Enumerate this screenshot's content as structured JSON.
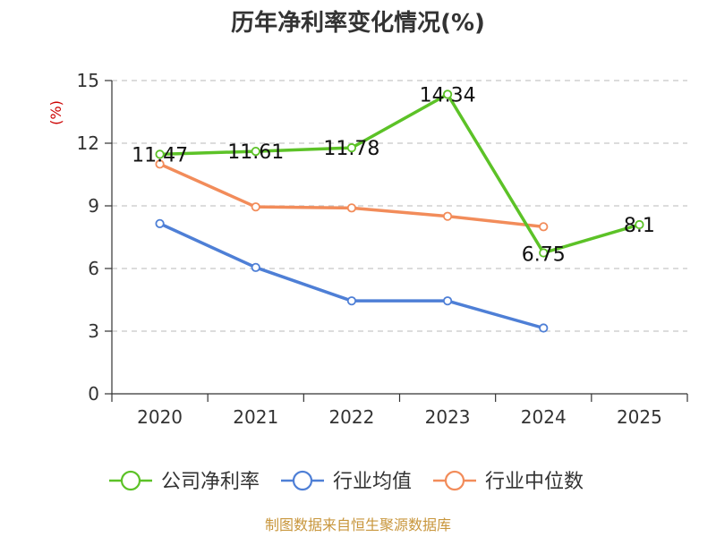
{
  "chart_data": {
    "type": "line",
    "title": "历年净利率变化情况(%)",
    "ylabel": "(%)",
    "xlabel": "",
    "categories": [
      "2020",
      "2021",
      "2022",
      "2023",
      "2024",
      "2025"
    ],
    "ylim": [
      0,
      15
    ],
    "yticks": [
      "0",
      "3",
      "6",
      "9",
      "12",
      "15"
    ],
    "grid": true,
    "legend_position": "bottom",
    "series": [
      {
        "name": "公司净利率",
        "color": "#5cc227",
        "values": [
          11.47,
          11.61,
          11.78,
          14.34,
          6.75,
          8.1
        ],
        "labels": [
          "11.47",
          "11.61",
          "11.78",
          "14.34",
          "6.75",
          "8.1"
        ]
      },
      {
        "name": "行业均值",
        "color": "#4e7fd6",
        "values": [
          8.15,
          6.05,
          4.45,
          4.45,
          3.15,
          null
        ],
        "labels": []
      },
      {
        "name": "行业中位数",
        "color": "#f28c5a",
        "values": [
          11.0,
          8.95,
          8.9,
          8.5,
          8.0,
          null
        ],
        "labels": []
      }
    ]
  },
  "footer": {
    "source": "制图数据来自恒生聚源数据库"
  }
}
